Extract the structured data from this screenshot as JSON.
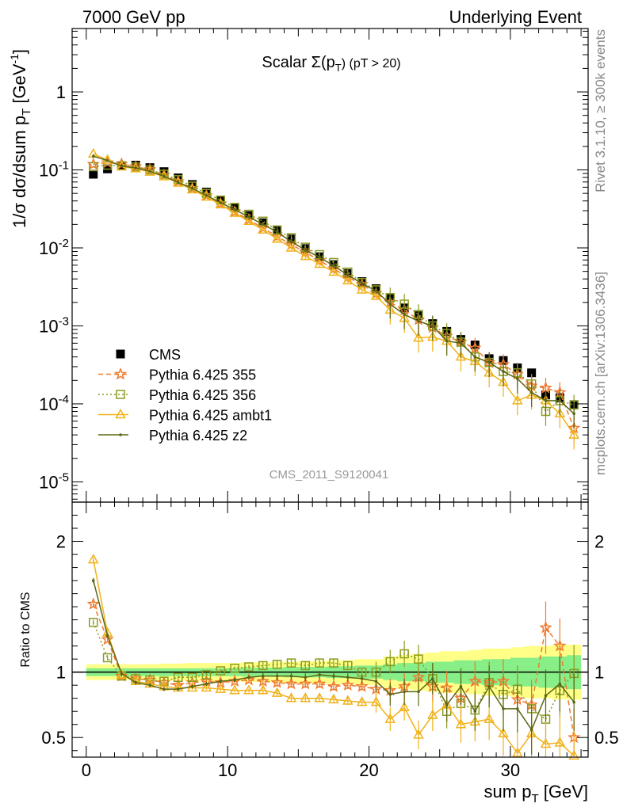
{
  "header": {
    "left": "7000 GeV pp",
    "right": "Underlying Event"
  },
  "side_labels": {
    "rivet": "Rivet 3.1.10, ≥ 300k events",
    "mcplots": "mcplots.cern.ch [arXiv:1306.3436]"
  },
  "watermark": "CMS_2011_S9120041",
  "colors": {
    "cms": "#000000",
    "p355": "#ee7a2e",
    "p356": "#8c9b1f",
    "ambt1": "#f0b21a",
    "z2": "#5b6614",
    "band_yellow": "#ffff88",
    "band_green": "#88ee88"
  },
  "chart_data": [
    {
      "type": "line",
      "title_main": "Scalar Σ(p",
      "title_sub": "T",
      "title_tail": ") (pT > 20)",
      "ylabel_main": "1/σ dσ/dsum p",
      "ylabel_sub": "T",
      "ylabel_unit": " [GeV",
      "ylabel_sup": "-1",
      "ylabel_close": "]",
      "yscale": "log",
      "xlim": [
        -1,
        35.5
      ],
      "ylim": [
        5.5e-06,
        6.5
      ],
      "yticks": [
        {
          "value": 1,
          "label": "1"
        },
        {
          "value": 0.1,
          "label": "10",
          "exp": "-1"
        },
        {
          "value": 0.01,
          "label": "10",
          "exp": "-2"
        },
        {
          "value": 0.001,
          "label": "10",
          "exp": "-3"
        },
        {
          "value": 0.0001,
          "label": "10",
          "exp": "-4"
        },
        {
          "value": 1e-05,
          "label": "10",
          "exp": "-5"
        }
      ],
      "x": [
        0.5,
        1.5,
        2.5,
        3.5,
        4.5,
        5.5,
        6.5,
        7.5,
        8.5,
        9.5,
        10.5,
        11.5,
        12.5,
        13.5,
        14.5,
        15.5,
        16.5,
        17.5,
        18.5,
        19.5,
        20.5,
        21.5,
        22.5,
        23.5,
        24.5,
        25.5,
        26.5,
        27.5,
        28.5,
        29.5,
        30.5,
        31.5,
        32.5,
        33.5,
        34.5
      ],
      "legend_position": "middle-left",
      "series": [
        {
          "name": "CMS",
          "style": "cms",
          "values": [
            0.088,
            0.103,
            0.113,
            0.115,
            0.107,
            0.095,
            0.079,
            0.065,
            0.052,
            0.041,
            0.033,
            0.026,
            0.021,
            0.0165,
            0.013,
            0.0098,
            0.0077,
            0.0061,
            0.0047,
            0.0037,
            0.003,
            0.0023,
            0.0017,
            0.00135,
            0.00107,
            0.00085,
            0.00067,
            0.00057,
            0.00038,
            0.00036,
            0.00029,
            0.00025,
            0.00013,
            0.00012,
            9.8e-05
          ]
        },
        {
          "name": "Pythia 6.425 355",
          "style": "p355",
          "values": [
            0.118,
            0.124,
            0.119,
            0.11,
            0.101,
            0.086,
            0.071,
            0.058,
            0.047,
            0.037,
            0.029,
            0.023,
            0.018,
            0.014,
            0.011,
            0.0088,
            0.0069,
            0.0054,
            0.0042,
            0.0034,
            0.0026,
            0.002,
            0.0016,
            0.0012,
            0.00095,
            0.00074,
            0.00062,
            0.00052,
            0.00034,
            0.00032,
            0.00024,
            0.00017,
            0.00016,
            0.00014,
            4.9e-05
          ]
        },
        {
          "name": "Pythia 6.425 356",
          "style": "p356",
          "values": [
            0.11,
            0.115,
            0.113,
            0.109,
            0.1,
            0.088,
            0.075,
            0.062,
            0.05,
            0.041,
            0.033,
            0.027,
            0.022,
            0.017,
            0.0135,
            0.0102,
            0.0082,
            0.0065,
            0.0049,
            0.0036,
            0.0029,
            0.0023,
            0.0019,
            0.0014,
            0.001,
            0.0008,
            0.00062,
            0.0004,
            0.00034,
            0.00026,
            0.00025,
            0.00018,
            8e-05,
            0.00011,
            9.7e-05
          ]
        },
        {
          "name": "Pythia 6.425 ambt1",
          "style": "ambt1",
          "values": [
            0.16,
            0.134,
            0.11,
            0.104,
            0.094,
            0.082,
            0.068,
            0.056,
            0.045,
            0.036,
            0.028,
            0.022,
            0.017,
            0.013,
            0.01,
            0.0078,
            0.0062,
            0.0049,
            0.0038,
            0.0029,
            0.0024,
            0.0016,
            0.00125,
            0.0007,
            0.00072,
            0.00064,
            0.0004,
            0.00035,
            0.00025,
            0.00019,
            0.00011,
            0.00013,
            0.00011,
            7.5e-05,
            4e-05
          ]
        },
        {
          "name": "Pythia 6.425 z2",
          "style": "z2",
          "values": [
            0.15,
            0.132,
            0.112,
            0.106,
            0.096,
            0.083,
            0.069,
            0.058,
            0.047,
            0.038,
            0.031,
            0.025,
            0.02,
            0.016,
            0.012,
            0.0094,
            0.0076,
            0.0059,
            0.0045,
            0.0035,
            0.0028,
            0.0019,
            0.0014,
            0.00115,
            0.001,
            0.00064,
            0.0006,
            0.0004,
            0.00034,
            0.00026,
            0.00021,
            0.00014,
            0.00011,
            0.00011,
            7.5e-05
          ]
        }
      ]
    },
    {
      "type": "line",
      "ylabel": "Ratio to CMS",
      "xlabel_main": "sum p",
      "xlabel_sub": "T",
      "xlabel_unit": " [GeV]",
      "xlim": [
        -1,
        35.5
      ],
      "ylim": [
        0.35,
        2.3
      ],
      "xticks": [
        0,
        10,
        20,
        30
      ],
      "yticks": [
        {
          "value": 0.5,
          "label": "0.5"
        },
        {
          "value": 1,
          "label": "1"
        },
        {
          "value": 2,
          "label": "2"
        }
      ],
      "x": [
        0.5,
        1.5,
        2.5,
        3.5,
        4.5,
        5.5,
        6.5,
        7.5,
        8.5,
        9.5,
        10.5,
        11.5,
        12.5,
        13.5,
        14.5,
        15.5,
        16.5,
        17.5,
        18.5,
        19.5,
        20.5,
        21.5,
        22.5,
        23.5,
        24.5,
        25.5,
        26.5,
        27.5,
        28.5,
        29.5,
        30.5,
        31.5,
        32.5,
        33.5,
        34.5
      ],
      "band_yellow_halfwidth": [
        0.06,
        0.06,
        0.06,
        0.06,
        0.06,
        0.065,
        0.065,
        0.07,
        0.07,
        0.07,
        0.07,
        0.075,
        0.075,
        0.08,
        0.08,
        0.085,
        0.085,
        0.09,
        0.09,
        0.1,
        0.1,
        0.12,
        0.13,
        0.14,
        0.15,
        0.16,
        0.16,
        0.17,
        0.18,
        0.18,
        0.19,
        0.2,
        0.2,
        0.21,
        0.21
      ],
      "band_green_halfwidth": [
        0.03,
        0.03,
        0.03,
        0.03,
        0.03,
        0.03,
        0.03,
        0.03,
        0.03,
        0.03,
        0.03,
        0.035,
        0.035,
        0.035,
        0.04,
        0.04,
        0.04,
        0.045,
        0.045,
        0.05,
        0.05,
        0.06,
        0.07,
        0.07,
        0.08,
        0.08,
        0.09,
        0.09,
        0.1,
        0.1,
        0.11,
        0.11,
        0.12,
        0.12,
        0.13
      ],
      "series": [
        {
          "name": "Pythia 6.425 355",
          "style": "p355",
          "values": [
            1.52,
            1.25,
            0.97,
            0.95,
            0.94,
            0.92,
            0.9,
            0.92,
            0.93,
            0.92,
            0.93,
            0.94,
            0.93,
            0.92,
            0.91,
            0.91,
            0.91,
            0.89,
            0.9,
            0.89,
            0.87,
            0.86,
            0.89,
            0.96,
            0.89,
            0.88,
            0.8,
            0.93,
            0.92,
            0.93,
            0.79,
            0.75,
            1.34,
            1.2,
            0.5
          ]
        },
        {
          "name": "Pythia 6.425 356",
          "style": "p356",
          "values": [
            1.38,
            1.11,
            0.97,
            0.95,
            0.94,
            0.93,
            0.96,
            0.96,
            0.98,
            1.01,
            1.03,
            1.04,
            1.05,
            1.06,
            1.07,
            1.05,
            1.07,
            1.07,
            1.05,
            1.0,
            1.0,
            1.08,
            1.14,
            1.1,
            0.95,
            0.7,
            0.76,
            0.71,
            0.92,
            0.83,
            0.87,
            0.72,
            0.64,
            0.86,
            0.99
          ]
        },
        {
          "name": "Pythia 6.425 ambt1",
          "style": "ambt1",
          "values": [
            1.86,
            1.3,
            0.98,
            0.93,
            0.91,
            0.89,
            0.88,
            0.88,
            0.88,
            0.87,
            0.86,
            0.86,
            0.86,
            0.84,
            0.8,
            0.8,
            0.8,
            0.79,
            0.78,
            0.77,
            0.77,
            0.64,
            0.73,
            0.52,
            0.67,
            0.75,
            0.6,
            0.62,
            0.64,
            0.53,
            0.38,
            0.53,
            0.45,
            0.46,
            0.36
          ]
        },
        {
          "name": "Pythia 6.425 z2",
          "style": "z2",
          "values": [
            1.7,
            1.28,
            0.99,
            0.92,
            0.9,
            0.87,
            0.87,
            0.89,
            0.91,
            0.93,
            0.94,
            0.96,
            0.97,
            0.97,
            0.97,
            0.96,
            0.98,
            0.97,
            0.96,
            0.95,
            0.93,
            0.83,
            0.85,
            0.85,
            0.95,
            0.75,
            0.89,
            0.7,
            0.89,
            0.72,
            0.72,
            0.56,
            0.82,
            0.91,
            0.77
          ]
        }
      ]
    }
  ]
}
